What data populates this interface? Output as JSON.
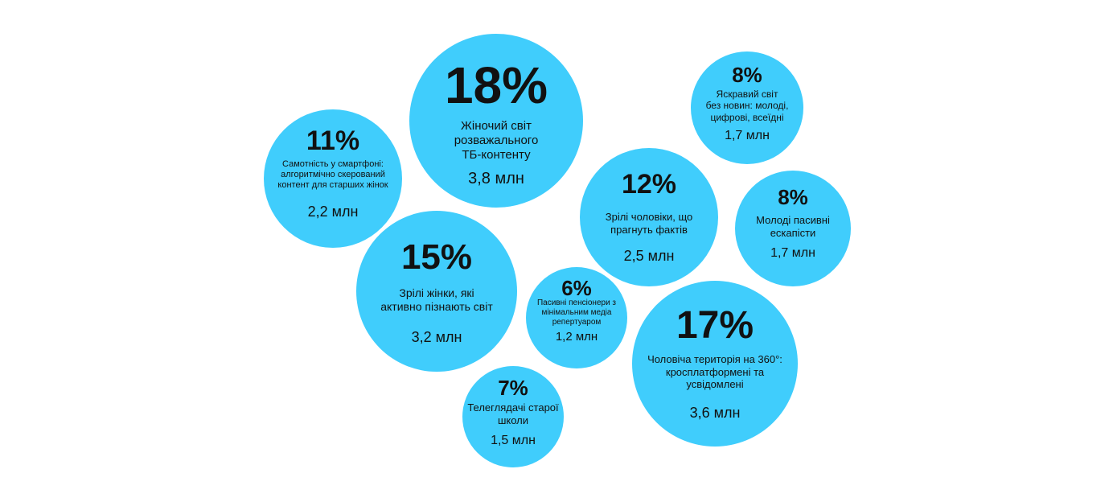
{
  "chart_data": {
    "type": "bubble",
    "colors": {
      "bubble": "#40cdfc",
      "text": "#111111"
    },
    "segments": [
      {
        "id": "women-tv-entertainment",
        "percent": "18%",
        "label_lines": [
          "Жіночий світ",
          "розважального",
          "ТБ-контенту"
        ],
        "count": "3,8 млн",
        "value": 18
      },
      {
        "id": "smartphone-loneliness",
        "percent": "11%",
        "label_lines": [
          "Самотність у смартфоні:",
          "алгоритмічно скерований",
          "контент для старших жінок"
        ],
        "count": "2,2 млн",
        "value": 11
      },
      {
        "id": "bright-world-no-news",
        "percent": "8%",
        "label_lines": [
          "Яскравий світ",
          "без новин: молоді,",
          "цифрові, всеїдні"
        ],
        "count": "1,7 млн",
        "value": 8
      },
      {
        "id": "mature-men-facts",
        "percent": "12%",
        "label_lines": [
          "Зрілі чоловіки, що",
          "прагнуть фактів"
        ],
        "count": "2,5 млн",
        "value": 12
      },
      {
        "id": "young-passive-escapists",
        "percent": "8%",
        "label_lines": [
          "Молоді пасивні",
          "ескапісти"
        ],
        "count": "1,7 млн",
        "value": 8
      },
      {
        "id": "mature-women-explorers",
        "percent": "15%",
        "label_lines": [
          "Зрілі жінки, які",
          "активно пізнають світ"
        ],
        "count": "3,2 млн",
        "value": 15
      },
      {
        "id": "passive-pensioners",
        "percent": "6%",
        "label_lines": [
          "Пасивні пенсіонери з",
          "мінімальним медіа",
          "репертуаром"
        ],
        "count": "1,2 млн",
        "value": 6
      },
      {
        "id": "men-360-territory",
        "percent": "17%",
        "label_lines": [
          "Чоловіча територія на 360°:",
          "кросплатформені та",
          "усвідомлені"
        ],
        "count": "3,6 млн",
        "value": 17
      },
      {
        "id": "old-school-viewers",
        "percent": "7%",
        "label_lines": [
          "Телеглядачі старої",
          "школи"
        ],
        "count": "1,5 млн",
        "value": 7
      }
    ]
  }
}
